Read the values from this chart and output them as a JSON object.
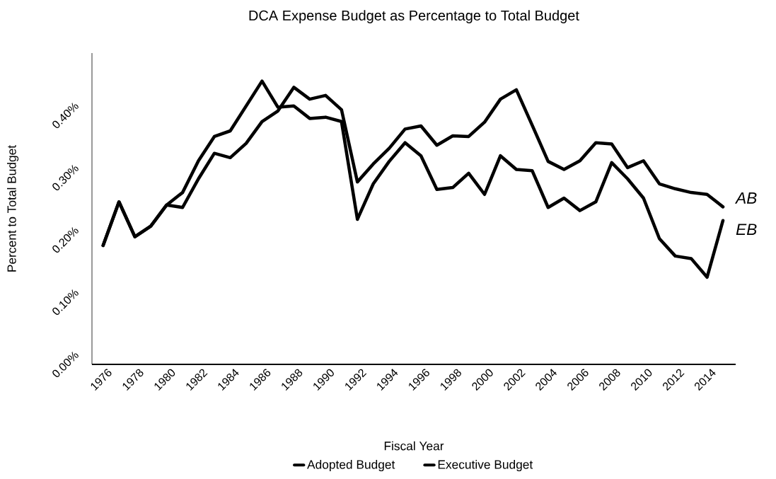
{
  "chart_data": {
    "type": "line",
    "title": "DCA Expense Budget as Percentage to Total Budget",
    "xlabel": "Fiscal Year",
    "ylabel": "Percent to Total Budget",
    "x": [
      1976,
      1977,
      1978,
      1979,
      1980,
      1981,
      1982,
      1983,
      1984,
      1985,
      1986,
      1987,
      1988,
      1989,
      1990,
      1991,
      1992,
      1993,
      1994,
      1995,
      1996,
      1997,
      1998,
      1999,
      2000,
      2001,
      2002,
      2003,
      2004,
      2005,
      2006,
      2007,
      2008,
      2009,
      2010,
      2011,
      2012,
      2013,
      2014,
      2015
    ],
    "series": [
      {
        "name": "Adopted Budget",
        "color": "#000000",
        "values": [
          0.191,
          0.261,
          0.205,
          0.222,
          0.256,
          0.252,
          0.298,
          0.339,
          0.332,
          0.355,
          0.39,
          0.407,
          0.445,
          0.426,
          0.432,
          0.409,
          0.293,
          0.322,
          0.347,
          0.378,
          0.383,
          0.352,
          0.367,
          0.366,
          0.389,
          0.426,
          0.441,
          0.384,
          0.326,
          0.313,
          0.327,
          0.356,
          0.354,
          0.316,
          0.327,
          0.29,
          0.282,
          0.276,
          0.273,
          0.253
        ]
      },
      {
        "name": "Executive Budget",
        "color": "#000000",
        "values": [
          0.191,
          0.261,
          0.205,
          0.222,
          0.256,
          0.276,
          0.327,
          0.366,
          0.375,
          0.415,
          0.455,
          0.413,
          0.415,
          0.395,
          0.397,
          0.39,
          0.233,
          0.29,
          0.326,
          0.356,
          0.335,
          0.281,
          0.284,
          0.307,
          0.273,
          0.335,
          0.313,
          0.311,
          0.252,
          0.267,
          0.247,
          0.261,
          0.324,
          0.298,
          0.267,
          0.202,
          0.174,
          0.17,
          0.14,
          0.231
        ]
      }
    ],
    "xlim": [
      1975.3,
      2015.8
    ],
    "ylim": [
      0,
      0.5
    ],
    "xticks": [
      1976,
      1978,
      1980,
      1982,
      1984,
      1986,
      1988,
      1990,
      1992,
      1994,
      1996,
      1998,
      2000,
      2002,
      2004,
      2006,
      2008,
      2010,
      2012,
      2014
    ],
    "yticks": [
      {
        "value": 0,
        "label": "0.00%"
      },
      {
        "value": 0.1,
        "label": "0.10%"
      },
      {
        "value": 0.2,
        "label": "0.20%"
      },
      {
        "value": 0.3,
        "label": "0.30%"
      },
      {
        "value": 0.4,
        "label": "0.40%"
      }
    ],
    "annotations": [
      {
        "text": "AB",
        "x": 2015,
        "y": 0.253
      },
      {
        "text": "EB",
        "x": 2015,
        "y": 0.231
      }
    ],
    "legend": "bottom"
  }
}
